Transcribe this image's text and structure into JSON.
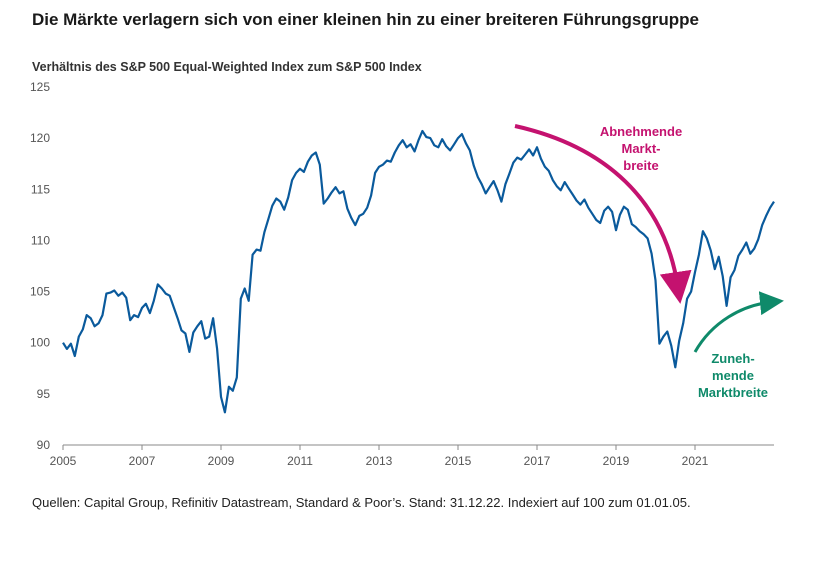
{
  "title": "Die Märkte verlagern sich von einer kleinen hin zu einer breiteren Führungsgruppe",
  "subtitle": "Verhältnis des S&P 500 Equal-Weighted Index zum S&P 500 Index",
  "source": "Quellen: Capital Group, Refinitiv Datastream, Standard & Poor’s. Stand: 31.12.22. Indexiert auf 100 zum 01.01.05.",
  "colors": {
    "line": "#0a5a9c",
    "declining": "#c4126f",
    "rising": "#0f8a6a",
    "axis": "#888888"
  },
  "chart_data": {
    "type": "line",
    "title": "Verhältnis des S&P 500 Equal-Weighted Index zum S&P 500 Index",
    "xlabel": "",
    "ylabel": "",
    "xlim": [
      2005,
      2023
    ],
    "ylim": [
      90,
      125
    ],
    "y_ticks": [
      "90",
      "95",
      "100",
      "105",
      "110",
      "115",
      "120",
      "125"
    ],
    "x_ticks": [
      "2005",
      "2007",
      "2009",
      "2011",
      "2013",
      "2015",
      "2017",
      "2019",
      "2021"
    ],
    "grid": false,
    "series": [
      {
        "name": "S&P 500 EW / S&P 500",
        "x": [
          2005.0,
          2005.1,
          2005.2,
          2005.3,
          2005.4,
          2005.5,
          2005.6,
          2005.7,
          2005.8,
          2005.9,
          2006.0,
          2006.1,
          2006.2,
          2006.3,
          2006.4,
          2006.5,
          2006.6,
          2006.7,
          2006.8,
          2006.9,
          2007.0,
          2007.1,
          2007.2,
          2007.3,
          2007.4,
          2007.5,
          2007.6,
          2007.7,
          2007.8,
          2007.9,
          2008.0,
          2008.1,
          2008.2,
          2008.3,
          2008.4,
          2008.5,
          2008.6,
          2008.7,
          2008.8,
          2008.9,
          2009.0,
          2009.1,
          2009.2,
          2009.3,
          2009.4,
          2009.5,
          2009.6,
          2009.7,
          2009.8,
          2009.9,
          2010.0,
          2010.1,
          2010.2,
          2010.3,
          2010.4,
          2010.5,
          2010.6,
          2010.7,
          2010.8,
          2010.9,
          2011.0,
          2011.1,
          2011.2,
          2011.3,
          2011.4,
          2011.5,
          2011.6,
          2011.7,
          2011.8,
          2011.9,
          2012.0,
          2012.1,
          2012.2,
          2012.3,
          2012.4,
          2012.5,
          2012.6,
          2012.7,
          2012.8,
          2012.9,
          2013.0,
          2013.1,
          2013.2,
          2013.3,
          2013.4,
          2013.5,
          2013.6,
          2013.7,
          2013.8,
          2013.9,
          2014.0,
          2014.1,
          2014.2,
          2014.3,
          2014.4,
          2014.5,
          2014.6,
          2014.7,
          2014.8,
          2014.9,
          2015.0,
          2015.1,
          2015.2,
          2015.3,
          2015.4,
          2015.5,
          2015.6,
          2015.7,
          2015.8,
          2015.9,
          2016.0,
          2016.1,
          2016.2,
          2016.3,
          2016.4,
          2016.5,
          2016.6,
          2016.7,
          2016.8,
          2016.9,
          2017.0,
          2017.1,
          2017.2,
          2017.3,
          2017.4,
          2017.5,
          2017.6,
          2017.7,
          2017.8,
          2017.9,
          2018.0,
          2018.1,
          2018.2,
          2018.3,
          2018.4,
          2018.5,
          2018.6,
          2018.7,
          2018.8,
          2018.9,
          2019.0,
          2019.1,
          2019.2,
          2019.3,
          2019.4,
          2019.5,
          2019.6,
          2019.7,
          2019.8,
          2019.9,
          2020.0,
          2020.1,
          2020.2,
          2020.3,
          2020.4,
          2020.5,
          2020.6,
          2020.7,
          2020.8,
          2020.9,
          2021.0,
          2021.1,
          2021.2,
          2021.3,
          2021.4,
          2021.5,
          2021.6,
          2021.7,
          2021.8,
          2021.9,
          2022.0,
          2022.1,
          2022.2,
          2022.3,
          2022.4,
          2022.5,
          2022.6,
          2022.7,
          2022.8,
          2022.9,
          2023.0
        ],
        "values": [
          100.0,
          99.4,
          99.9,
          98.7,
          100.6,
          101.3,
          102.7,
          102.4,
          101.6,
          101.9,
          102.7,
          104.8,
          104.9,
          105.1,
          104.6,
          104.9,
          104.4,
          102.2,
          102.7,
          102.5,
          103.4,
          103.8,
          102.9,
          104.1,
          105.7,
          105.3,
          104.8,
          104.6,
          103.5,
          102.4,
          101.2,
          100.9,
          99.1,
          101.0,
          101.6,
          102.1,
          100.4,
          100.6,
          102.4,
          99.4,
          94.7,
          93.2,
          95.7,
          95.3,
          96.6,
          104.3,
          105.3,
          104.1,
          108.6,
          109.1,
          109.0,
          110.8,
          112.1,
          113.4,
          114.1,
          113.8,
          113.0,
          114.2,
          115.9,
          116.6,
          117.0,
          116.7,
          117.7,
          118.3,
          118.6,
          117.4,
          113.6,
          114.1,
          114.7,
          115.2,
          114.6,
          114.8,
          113.1,
          112.2,
          111.5,
          112.4,
          112.6,
          113.2,
          114.4,
          116.6,
          117.2,
          117.4,
          117.8,
          117.7,
          118.6,
          119.3,
          119.8,
          119.1,
          119.4,
          118.7,
          119.8,
          120.7,
          120.1,
          120.0,
          119.3,
          119.1,
          119.9,
          119.2,
          118.8,
          119.4,
          120.0,
          120.4,
          119.5,
          118.8,
          117.3,
          116.2,
          115.5,
          114.6,
          115.2,
          115.8,
          114.9,
          113.8,
          115.5,
          116.5,
          117.6,
          118.1,
          117.9,
          118.4,
          118.9,
          118.3,
          119.1,
          118.0,
          117.2,
          116.8,
          115.9,
          115.3,
          114.9,
          115.7,
          115.1,
          114.5,
          113.9,
          113.5,
          114.0,
          113.2,
          112.6,
          112.0,
          111.7,
          112.9,
          113.3,
          112.8,
          111.0,
          112.5,
          113.3,
          113.0,
          111.6,
          111.3,
          110.9,
          110.6,
          110.2,
          108.7,
          106.1,
          99.9,
          100.6,
          101.1,
          99.7,
          97.6,
          100.2,
          101.9,
          104.3,
          105.0,
          106.9,
          108.6,
          110.9,
          110.2,
          109.0,
          107.2,
          108.4,
          106.5,
          103.6,
          106.4,
          107.1,
          108.5,
          109.1,
          109.8,
          108.7,
          109.2,
          110.1,
          111.5,
          112.4,
          113.2,
          113.8
        ]
      }
    ],
    "annotations": [
      {
        "lines": [
          "Abnehmende",
          "Markt-",
          "breite"
        ],
        "color": "declining",
        "direction": "down"
      },
      {
        "lines": [
          "Zuneh-",
          "mende",
          "Marktbreite"
        ],
        "color": "rising",
        "direction": "up"
      }
    ]
  }
}
